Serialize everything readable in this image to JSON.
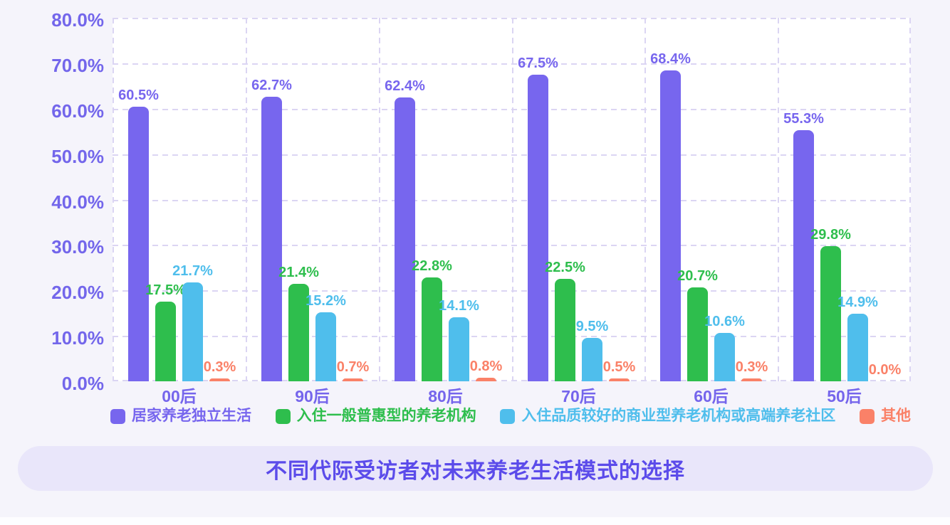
{
  "chart_data": {
    "type": "bar",
    "title": "不同代际受访者对未来养老生活模式的选择",
    "categories": [
      "00后",
      "90后",
      "80后",
      "70后",
      "60后",
      "50后"
    ],
    "series": [
      {
        "name": "居家养老独立生活",
        "color": "#7766EE",
        "values": [
          60.5,
          62.7,
          62.4,
          67.5,
          68.4,
          55.3
        ]
      },
      {
        "name": "入住一般普惠型的养老机构",
        "color": "#2EBE4D",
        "values": [
          17.5,
          21.4,
          22.8,
          22.5,
          20.7,
          29.8
        ]
      },
      {
        "name": "入住品质较好的商业型养老机构或高端养老社区",
        "color": "#4FBEEC",
        "values": [
          21.7,
          15.2,
          14.1,
          9.5,
          10.6,
          14.9
        ]
      },
      {
        "name": "其他",
        "color": "#FA8168",
        "values": [
          0.3,
          0.7,
          0.8,
          0.5,
          0.3,
          0.0
        ]
      }
    ],
    "y_ticks": [
      "80.0%",
      "70.0%",
      "60.0%",
      "50.0%",
      "40.0%",
      "30.0%",
      "20.0%",
      "10.0%",
      "0.0%"
    ],
    "ylim": [
      0,
      80
    ],
    "grid": true,
    "value_label_suffix": "%",
    "legend_position": "bottom",
    "colors": {
      "background": "#F5F4FB",
      "plot_background": "#FFFFFF",
      "gridline": "#DBD5F3",
      "axis_label": "#7366EB",
      "category_label": "#7565EC",
      "title_text": "#5B4BEA",
      "title_pill_background": "#E9E6FA"
    }
  }
}
